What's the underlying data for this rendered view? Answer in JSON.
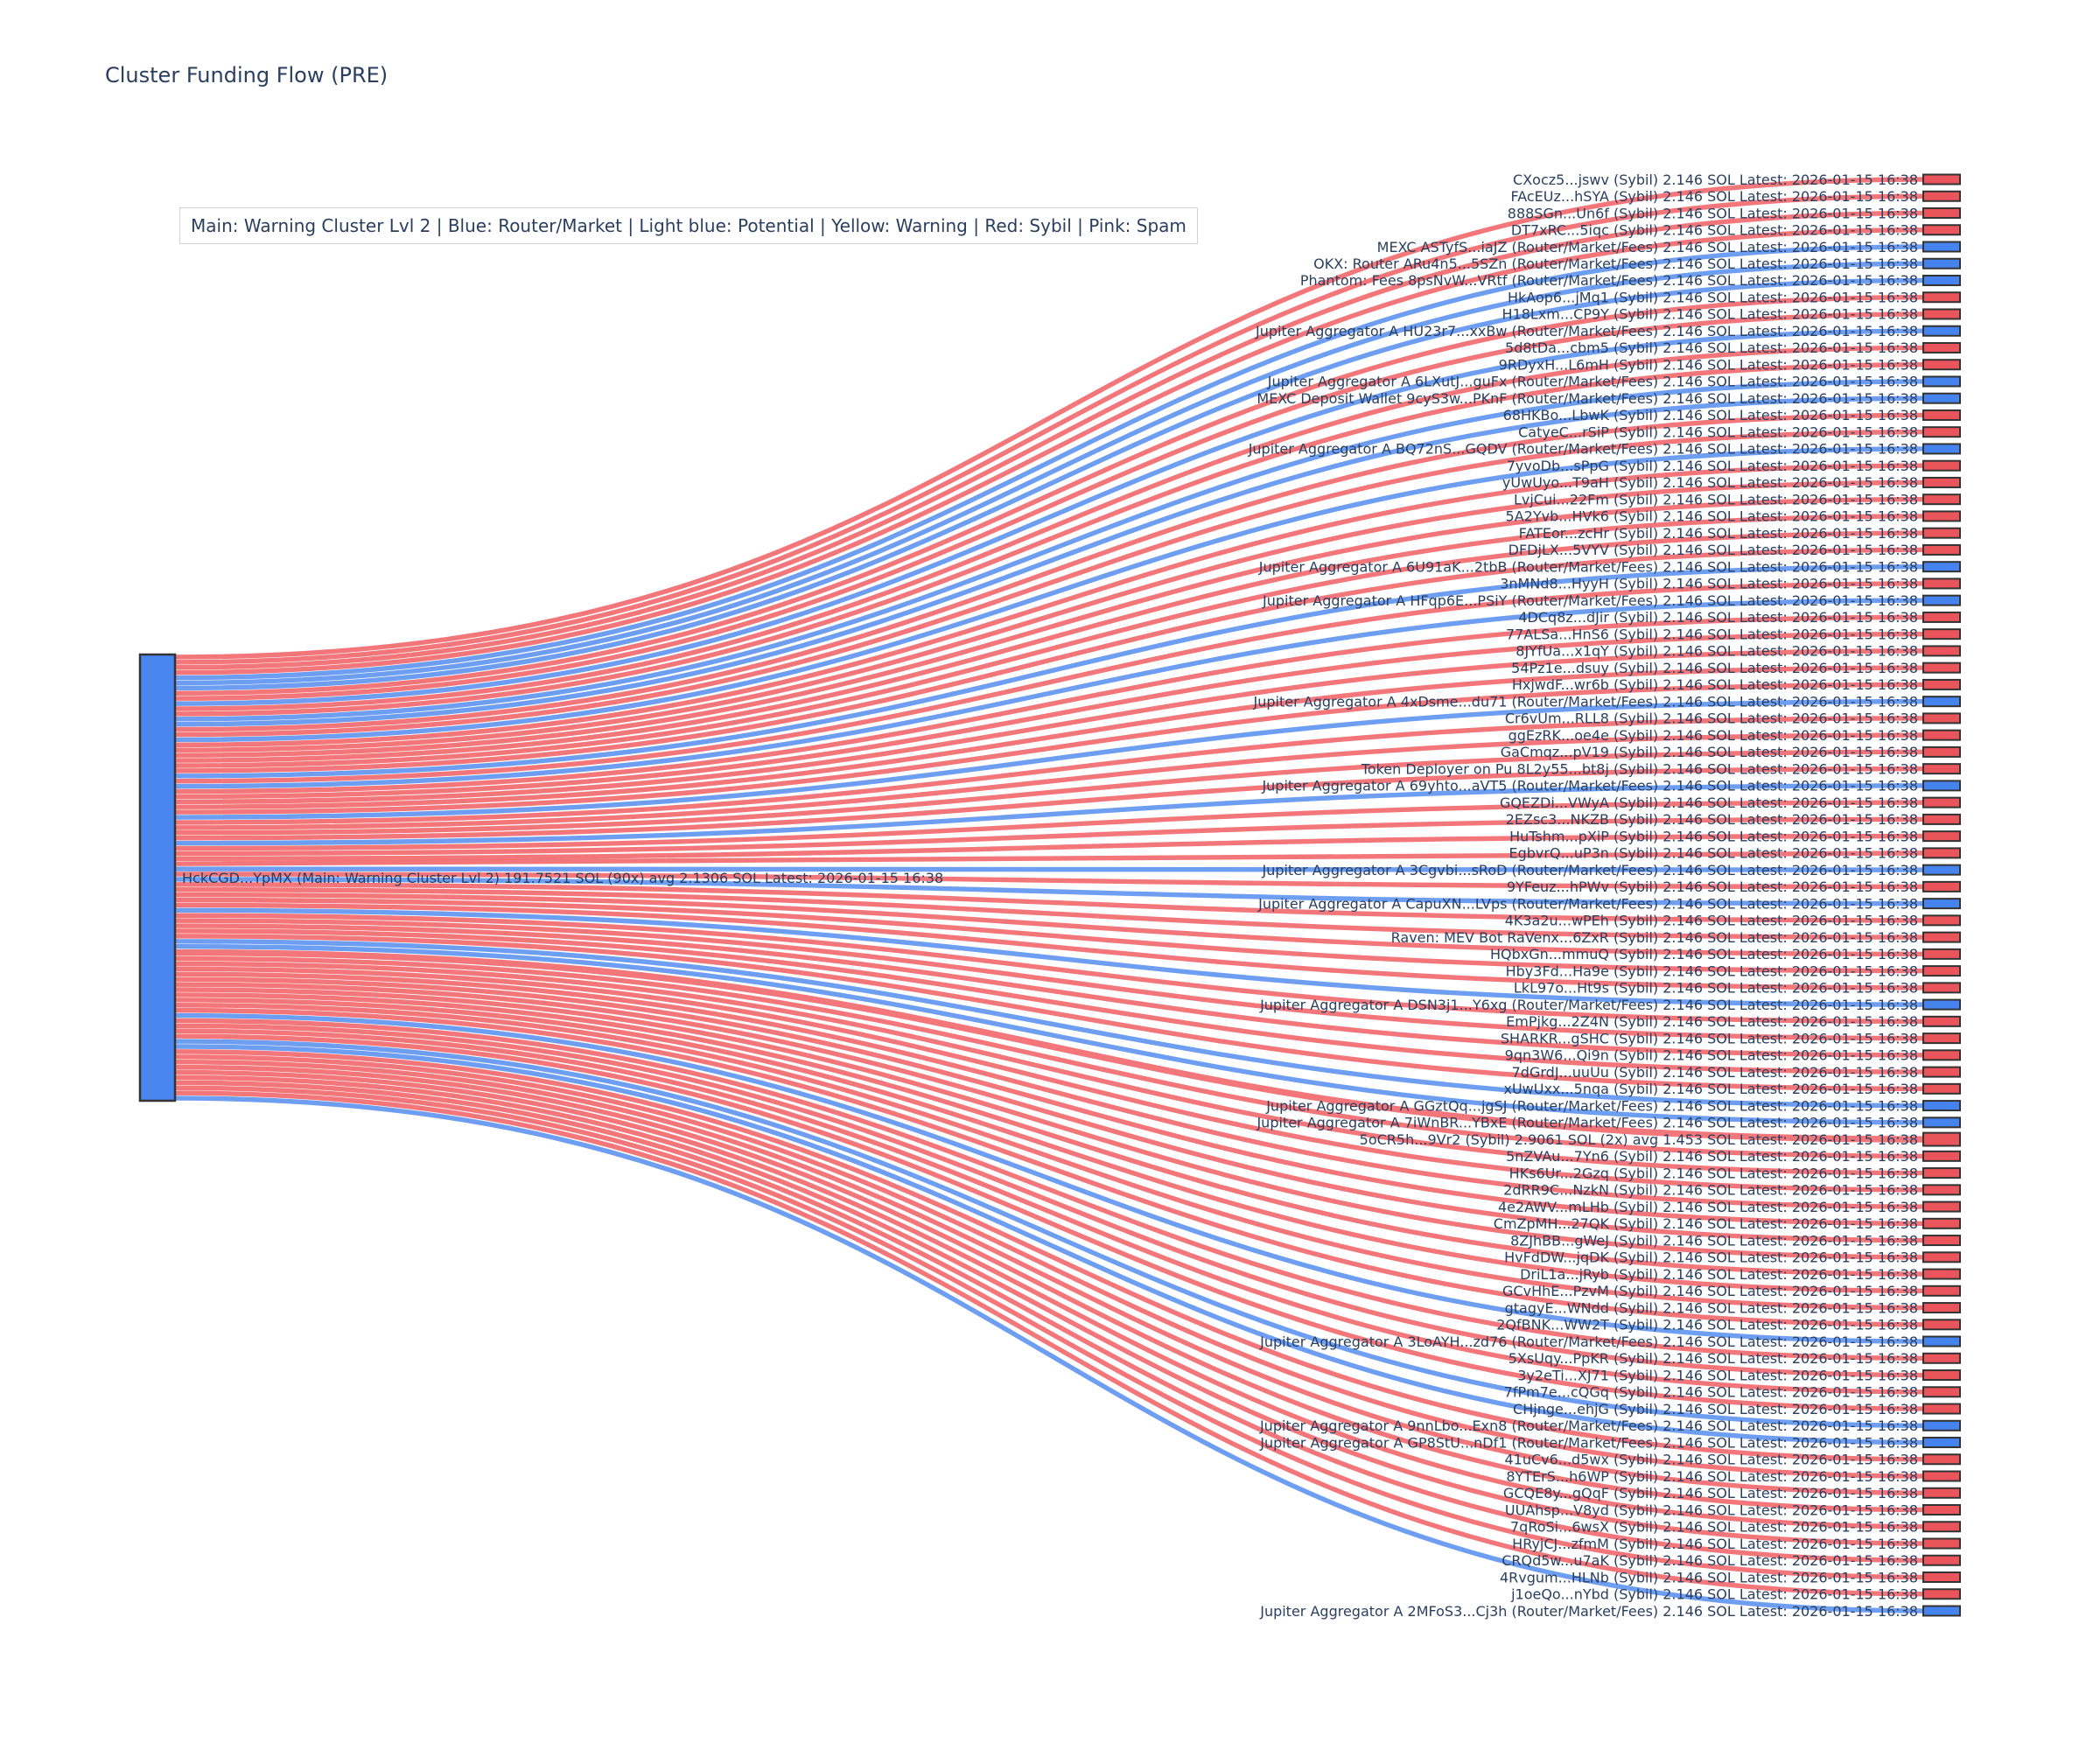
{
  "title": "Cluster Funding Flow (PRE)",
  "legend": "Main: Warning Cluster Lvl 2  |  Blue: Router/Market | Light blue: Potential | Yellow: Warning | Red: Sybil | Pink: Spam",
  "colors": {
    "main_node": "#4a86ef",
    "sybil_node": "#ea555c",
    "router_node": "#4583ee",
    "sybil_link": "#f15f63",
    "router_link": "#548df0",
    "node_border": "#333333",
    "text": "#2a3f5f",
    "legend_border": "#d3d3d3",
    "background": "#ffffff"
  },
  "chart_data": {
    "type": "sankey",
    "title": "Cluster Funding Flow (PRE)",
    "default_value_sol": 2.146,
    "source_node": {
      "label": "HckCGD...YpMX (Main: Warning Cluster Lvl 2) 191.7521 SOL (90x) avg 2.1306 SOL Latest: 2026-01-15 16:38",
      "total_sol": "191.7521",
      "tx_count": "90x",
      "avg_sol": "2.1306",
      "latest": "2026-01-15 16:38",
      "type": "main"
    },
    "targets": [
      {
        "label": "CXocz5...jswv (Sybil) 2.146 SOL Latest: 2026-01-15 16:38",
        "type": "sybil"
      },
      {
        "label": "FAcEUz...hSYA (Sybil) 2.146 SOL Latest: 2026-01-15 16:38",
        "type": "sybil"
      },
      {
        "label": "888SGn...Un6f (Sybil) 2.146 SOL Latest: 2026-01-15 16:38",
        "type": "sybil"
      },
      {
        "label": "DT7xRC...5iqc (Sybil) 2.146 SOL Latest: 2026-01-15 16:38",
        "type": "sybil"
      },
      {
        "label": "MEXC ASTyfS...iaJZ (Router/Market/Fees) 2.146 SOL Latest: 2026-01-15 16:38",
        "type": "router"
      },
      {
        "label": "OKX: Router ARu4n5...5SZn (Router/Market/Fees) 2.146 SOL Latest: 2026-01-15 16:38",
        "type": "router"
      },
      {
        "label": "Phantom: Fees 8psNvW...VRtf (Router/Market/Fees) 2.146 SOL Latest: 2026-01-15 16:38",
        "type": "router"
      },
      {
        "label": "HkAop6...jMq1 (Sybil) 2.146 SOL Latest: 2026-01-15 16:38",
        "type": "sybil"
      },
      {
        "label": "H18Lxm...CP9Y (Sybil) 2.146 SOL Latest: 2026-01-15 16:38",
        "type": "sybil"
      },
      {
        "label": "Jupiter Aggregator A HU23r7...xxBw (Router/Market/Fees) 2.146 SOL Latest: 2026-01-15 16:38",
        "type": "router"
      },
      {
        "label": "5d8tDa...cbm5 (Sybil) 2.146 SOL Latest: 2026-01-15 16:38",
        "type": "sybil"
      },
      {
        "label": "9RDyxH...L6mH (Sybil) 2.146 SOL Latest: 2026-01-15 16:38",
        "type": "sybil"
      },
      {
        "label": "Jupiter Aggregator A 6LXutJ...guFx (Router/Market/Fees) 2.146 SOL Latest: 2026-01-15 16:38",
        "type": "router"
      },
      {
        "label": "MEXC Deposit Wallet 9cyS3w...PKnF (Router/Market/Fees) 2.146 SOL Latest: 2026-01-15 16:38",
        "type": "router"
      },
      {
        "label": "68HKBo...LbwK (Sybil) 2.146 SOL Latest: 2026-01-15 16:38",
        "type": "sybil"
      },
      {
        "label": "CatyeC...rSiP (Sybil) 2.146 SOL Latest: 2026-01-15 16:38",
        "type": "sybil"
      },
      {
        "label": "Jupiter Aggregator A BQ72nS...GQDV (Router/Market/Fees) 2.146 SOL Latest: 2026-01-15 16:38",
        "type": "router"
      },
      {
        "label": "7yvoDb...sPpG (Sybil) 2.146 SOL Latest: 2026-01-15 16:38",
        "type": "sybil"
      },
      {
        "label": "yUwUyo...T9aH (Sybil) 2.146 SOL Latest: 2026-01-15 16:38",
        "type": "sybil"
      },
      {
        "label": "LvjCui...22Fm (Sybil) 2.146 SOL Latest: 2026-01-15 16:38",
        "type": "sybil"
      },
      {
        "label": "5A2Yvb...HVk6 (Sybil) 2.146 SOL Latest: 2026-01-15 16:38",
        "type": "sybil"
      },
      {
        "label": "FATEor...zcHr (Sybil) 2.146 SOL Latest: 2026-01-15 16:38",
        "type": "sybil"
      },
      {
        "label": "DFDjLX...5VYV (Sybil) 2.146 SOL Latest: 2026-01-15 16:38",
        "type": "sybil"
      },
      {
        "label": "Jupiter Aggregator A 6U91aK...2tbB (Router/Market/Fees) 2.146 SOL Latest: 2026-01-15 16:38",
        "type": "router"
      },
      {
        "label": "3nMNd8...HyyH (Sybil) 2.146 SOL Latest: 2026-01-15 16:38",
        "type": "sybil"
      },
      {
        "label": "Jupiter Aggregator A HFqp6E...PSiY (Router/Market/Fees) 2.146 SOL Latest: 2026-01-15 16:38",
        "type": "router"
      },
      {
        "label": "4DCq8z...dJir (Sybil) 2.146 SOL Latest: 2026-01-15 16:38",
        "type": "sybil"
      },
      {
        "label": "77ALSa...HnS6 (Sybil) 2.146 SOL Latest: 2026-01-15 16:38",
        "type": "sybil"
      },
      {
        "label": "8JYfUa...x1qY (Sybil) 2.146 SOL Latest: 2026-01-15 16:38",
        "type": "sybil"
      },
      {
        "label": "54Pz1e...dsuy (Sybil) 2.146 SOL Latest: 2026-01-15 16:38",
        "type": "sybil"
      },
      {
        "label": "HxjwdF...wr6b (Sybil) 2.146 SOL Latest: 2026-01-15 16:38",
        "type": "sybil"
      },
      {
        "label": "Jupiter Aggregator A 4xDsme...du71 (Router/Market/Fees) 2.146 SOL Latest: 2026-01-15 16:38",
        "type": "router"
      },
      {
        "label": "Cr6vUm...RLL8 (Sybil) 2.146 SOL Latest: 2026-01-15 16:38",
        "type": "sybil"
      },
      {
        "label": "ggEzRK...oe4e (Sybil) 2.146 SOL Latest: 2026-01-15 16:38",
        "type": "sybil"
      },
      {
        "label": "GaCmqz...pV19 (Sybil) 2.146 SOL Latest: 2026-01-15 16:38",
        "type": "sybil"
      },
      {
        "label": "Token Deployer on Pu 8L2y55...bt8j (Sybil) 2.146 SOL Latest: 2026-01-15 16:38",
        "type": "sybil"
      },
      {
        "label": "Jupiter Aggregator A 69yhto...aVT5 (Router/Market/Fees) 2.146 SOL Latest: 2026-01-15 16:38",
        "type": "router"
      },
      {
        "label": "GQEZDi...VWyA (Sybil) 2.146 SOL Latest: 2026-01-15 16:38",
        "type": "sybil"
      },
      {
        "label": "2EZsc3...NKZB (Sybil) 2.146 SOL Latest: 2026-01-15 16:38",
        "type": "sybil"
      },
      {
        "label": "HuTshm...pXiP (Sybil) 2.146 SOL Latest: 2026-01-15 16:38",
        "type": "sybil"
      },
      {
        "label": "EgbvrQ...uP3n (Sybil) 2.146 SOL Latest: 2026-01-15 16:38",
        "type": "sybil"
      },
      {
        "label": "Jupiter Aggregator A 3Cgvbi...sRoD (Router/Market/Fees) 2.146 SOL Latest: 2026-01-15 16:38",
        "type": "router"
      },
      {
        "label": "9YFeuz...hPWv (Sybil) 2.146 SOL Latest: 2026-01-15 16:38",
        "type": "sybil"
      },
      {
        "label": "Jupiter Aggregator A CapuXN...LVps (Router/Market/Fees) 2.146 SOL Latest: 2026-01-15 16:38",
        "type": "router"
      },
      {
        "label": "4K3a2u...wPEh (Sybil) 2.146 SOL Latest: 2026-01-15 16:38",
        "type": "sybil"
      },
      {
        "label": "Raven: MEV Bot RaVenx...6ZxR (Sybil) 2.146 SOL Latest: 2026-01-15 16:38",
        "type": "sybil"
      },
      {
        "label": "HQbxGn...mmuQ (Sybil) 2.146 SOL Latest: 2026-01-15 16:38",
        "type": "sybil"
      },
      {
        "label": "Hby3Fd...Ha9e (Sybil) 2.146 SOL Latest: 2026-01-15 16:38",
        "type": "sybil"
      },
      {
        "label": "LkL97o...Ht9s (Sybil) 2.146 SOL Latest: 2026-01-15 16:38",
        "type": "sybil"
      },
      {
        "label": "Jupiter Aggregator A DSN3j1...Y6xg (Router/Market/Fees) 2.146 SOL Latest: 2026-01-15 16:38",
        "type": "router"
      },
      {
        "label": "EmPjkg...2Z4N (Sybil) 2.146 SOL Latest: 2026-01-15 16:38",
        "type": "sybil"
      },
      {
        "label": "SHARKR...gSHC (Sybil) 2.146 SOL Latest: 2026-01-15 16:38",
        "type": "sybil"
      },
      {
        "label": "9qn3W6...Qi9n (Sybil) 2.146 SOL Latest: 2026-01-15 16:38",
        "type": "sybil"
      },
      {
        "label": "7dGrdJ...uuUu (Sybil) 2.146 SOL Latest: 2026-01-15 16:38",
        "type": "sybil"
      },
      {
        "label": "xUwUxx...5nqa (Sybil) 2.146 SOL Latest: 2026-01-15 16:38",
        "type": "sybil"
      },
      {
        "label": "Jupiter Aggregator A GGztQq...jgSJ (Router/Market/Fees) 2.146 SOL Latest: 2026-01-15 16:38",
        "type": "router"
      },
      {
        "label": "Jupiter Aggregator A 7iWnBR...YBxE (Router/Market/Fees) 2.146 SOL Latest: 2026-01-15 16:38",
        "type": "router"
      },
      {
        "label": "5oCR5h...9Vr2 (Sybil) 2.9061 SOL (2x) avg 1.453 SOL Latest: 2026-01-15 16:38",
        "type": "sybil",
        "sol": 2.9061
      },
      {
        "label": "5nZVAu...7Yn6 (Sybil) 2.146 SOL Latest: 2026-01-15 16:38",
        "type": "sybil"
      },
      {
        "label": "HKs6Ur...2Gzq (Sybil) 2.146 SOL Latest: 2026-01-15 16:38",
        "type": "sybil"
      },
      {
        "label": "2dRR9C...NzkN (Sybil) 2.146 SOL Latest: 2026-01-15 16:38",
        "type": "sybil"
      },
      {
        "label": "4e2AWV...mLHb (Sybil) 2.146 SOL Latest: 2026-01-15 16:38",
        "type": "sybil"
      },
      {
        "label": "CmZpMH...27QK (Sybil) 2.146 SOL Latest: 2026-01-15 16:38",
        "type": "sybil"
      },
      {
        "label": "8ZJhBB...gWeJ (Sybil) 2.146 SOL Latest: 2026-01-15 16:38",
        "type": "sybil"
      },
      {
        "label": "HvFdDW...jqDK (Sybil) 2.146 SOL Latest: 2026-01-15 16:38",
        "type": "sybil"
      },
      {
        "label": "DriL1a...jRyb (Sybil) 2.146 SOL Latest: 2026-01-15 16:38",
        "type": "sybil"
      },
      {
        "label": "GCvHhE...PzvM (Sybil) 2.146 SOL Latest: 2026-01-15 16:38",
        "type": "sybil"
      },
      {
        "label": "gtagyE...WNdd (Sybil) 2.146 SOL Latest: 2026-01-15 16:38",
        "type": "sybil"
      },
      {
        "label": "2QfBNK...WW2T (Sybil) 2.146 SOL Latest: 2026-01-15 16:38",
        "type": "sybil"
      },
      {
        "label": "Jupiter Aggregator A 3LoAYH...zd76 (Router/Market/Fees) 2.146 SOL Latest: 2026-01-15 16:38",
        "type": "router"
      },
      {
        "label": "5XsUqy...PpKR (Sybil) 2.146 SOL Latest: 2026-01-15 16:38",
        "type": "sybil"
      },
      {
        "label": "3y2eTi...XJ71 (Sybil) 2.146 SOL Latest: 2026-01-15 16:38",
        "type": "sybil"
      },
      {
        "label": "7fPm7e...cQGq (Sybil) 2.146 SOL Latest: 2026-01-15 16:38",
        "type": "sybil"
      },
      {
        "label": "CHjnge...ehjG (Sybil) 2.146 SOL Latest: 2026-01-15 16:38",
        "type": "sybil"
      },
      {
        "label": "Jupiter Aggregator A 9nnLbo...Exn8 (Router/Market/Fees) 2.146 SOL Latest: 2026-01-15 16:38",
        "type": "router"
      },
      {
        "label": "Jupiter Aggregator A GP8StU...nDf1 (Router/Market/Fees) 2.146 SOL Latest: 2026-01-15 16:38",
        "type": "router"
      },
      {
        "label": "41uCv6...d5wx (Sybil) 2.146 SOL Latest: 2026-01-15 16:38",
        "type": "sybil"
      },
      {
        "label": "8YTErS...h6WP (Sybil) 2.146 SOL Latest: 2026-01-15 16:38",
        "type": "sybil"
      },
      {
        "label": "GCQE8y...gQqF (Sybil) 2.146 SOL Latest: 2026-01-15 16:38",
        "type": "sybil"
      },
      {
        "label": "UUAhsp...V8yd (Sybil) 2.146 SOL Latest: 2026-01-15 16:38",
        "type": "sybil"
      },
      {
        "label": "7qRoSi...6wsX (Sybil) 2.146 SOL Latest: 2026-01-15 16:38",
        "type": "sybil"
      },
      {
        "label": "HRyjCJ...zfmM (Sybil) 2.146 SOL Latest: 2026-01-15 16:38",
        "type": "sybil"
      },
      {
        "label": "CRQd5w...u7aK (Sybil) 2.146 SOL Latest: 2026-01-15 16:38",
        "type": "sybil"
      },
      {
        "label": "4Rvgum...HLNb (Sybil) 2.146 SOL Latest: 2026-01-15 16:38",
        "type": "sybil"
      },
      {
        "label": "j1oeQo...nYbd (Sybil) 2.146 SOL Latest: 2026-01-15 16:38",
        "type": "sybil"
      },
      {
        "label": "Jupiter Aggregator A 2MFoS3...Cj3h (Router/Market/Fees) 2.146 SOL Latest: 2026-01-15 16:38",
        "type": "router"
      }
    ]
  }
}
